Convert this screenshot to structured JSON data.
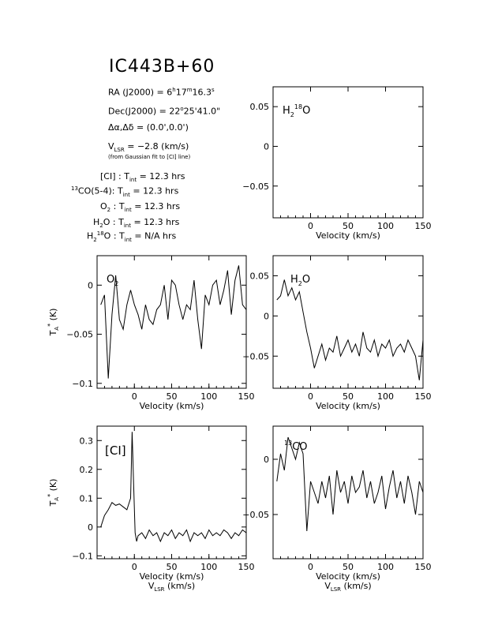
{
  "title": "IC443B+60",
  "info": {
    "ra_label": "RA (J2000) =",
    "ra_h": "6",
    "ra_m": "17",
    "ra_s": "16.3",
    "dec_label": "Dec(J2000) =",
    "dec_d": "22",
    "dec_min": "25'41.0\"",
    "offset_label": "Δα,Δδ =",
    "offset_value": "(0.0',0.0')",
    "vlsr_value": "= −2.8 (km/s)",
    "vlsr_note": "(from Gaussian fit to [CI] line)",
    "tint": [
      {
        "species": "[CI]",
        "value": "= 12.3 hrs"
      },
      {
        "species": "13CO(5-4)",
        "value": "= 12.3 hrs"
      },
      {
        "species": "O2",
        "value": "= 12.3 hrs"
      },
      {
        "species": "H2O",
        "value": "= 12.3 hrs"
      },
      {
        "species": "H2 18O",
        "value": "= N/A hrs"
      }
    ]
  },
  "chart_data": [
    {
      "id": "h218o",
      "type": "line",
      "label": "H2 18O",
      "xlabel": "Velocity (km/s)",
      "ylabel": "",
      "xlim": [
        -50,
        150
      ],
      "ylim": [
        -0.09,
        0.075
      ],
      "xticks": [
        0,
        50,
        100,
        150
      ],
      "yticks": [
        0.05,
        0,
        -0.05
      ],
      "ytick_labels": [
        "0.05",
        "0",
        "−0.05"
      ],
      "x": [],
      "y": []
    },
    {
      "id": "o2",
      "type": "line",
      "label": "O2",
      "xlabel": "Velocity (km/s)",
      "ylabel": "TA* (K)",
      "xlim": [
        -50,
        150
      ],
      "ylim": [
        -0.105,
        0.03
      ],
      "xticks": [
        0,
        50,
        100,
        150
      ],
      "yticks": [
        0,
        -0.05,
        -0.1
      ],
      "ytick_labels": [
        "0",
        "−0.05",
        "−0.1"
      ],
      "x": [
        -45,
        -40,
        -35,
        -30,
        -25,
        -20,
        -15,
        -10,
        -5,
        0,
        5,
        10,
        15,
        20,
        25,
        30,
        35,
        40,
        45,
        50,
        55,
        60,
        65,
        70,
        75,
        80,
        85,
        90,
        95,
        100,
        105,
        110,
        115,
        120,
        125,
        130,
        135,
        140,
        145,
        150
      ],
      "y": [
        -0.02,
        -0.01,
        -0.095,
        -0.03,
        0.01,
        -0.035,
        -0.045,
        -0.02,
        -0.005,
        -0.02,
        -0.03,
        -0.045,
        -0.02,
        -0.035,
        -0.04,
        -0.025,
        -0.02,
        0.0,
        -0.035,
        0.005,
        0.0,
        -0.02,
        -0.035,
        -0.02,
        -0.025,
        0.005,
        -0.035,
        -0.065,
        -0.01,
        -0.02,
        0.0,
        0.005,
        -0.02,
        -0.005,
        0.015,
        -0.03,
        0.005,
        0.02,
        -0.02,
        -0.025
      ]
    },
    {
      "id": "h2o",
      "type": "line",
      "label": "H2O",
      "xlabel": "Velocity (km/s)",
      "ylabel": "",
      "xlim": [
        -50,
        150
      ],
      "ylim": [
        -0.09,
        0.075
      ],
      "xticks": [
        0,
        50,
        100,
        150
      ],
      "yticks": [
        0.05,
        0,
        -0.05
      ],
      "ytick_labels": [
        "0.05",
        "0",
        "−0.05"
      ],
      "x": [
        -45,
        -40,
        -35,
        -30,
        -25,
        -20,
        -15,
        -10,
        -5,
        0,
        5,
        10,
        15,
        20,
        25,
        30,
        35,
        40,
        45,
        50,
        55,
        60,
        65,
        70,
        75,
        80,
        85,
        90,
        95,
        100,
        105,
        110,
        115,
        120,
        125,
        130,
        135,
        140,
        145,
        150
      ],
      "y": [
        0.02,
        0.025,
        0.045,
        0.025,
        0.035,
        0.02,
        0.03,
        0.005,
        -0.02,
        -0.04,
        -0.065,
        -0.05,
        -0.035,
        -0.055,
        -0.04,
        -0.045,
        -0.025,
        -0.05,
        -0.04,
        -0.03,
        -0.045,
        -0.035,
        -0.05,
        -0.02,
        -0.04,
        -0.045,
        -0.03,
        -0.05,
        -0.035,
        -0.04,
        -0.03,
        -0.05,
        -0.04,
        -0.035,
        -0.045,
        -0.03,
        -0.04,
        -0.05,
        -0.08,
        -0.03
      ]
    },
    {
      "id": "ci",
      "type": "line",
      "label": "[CI]",
      "xlabel": "Velocity (km/s)",
      "ylabel": "TA* (K)",
      "xlim": [
        -50,
        150
      ],
      "ylim": [
        -0.11,
        0.35
      ],
      "xticks": [
        0,
        50,
        100,
        150
      ],
      "yticks": [
        0.3,
        0.2,
        0.1,
        0,
        -0.1
      ],
      "ytick_labels": [
        "0.3",
        "0.2",
        "0.1",
        "0",
        "−0.1"
      ],
      "x": [
        -45,
        -40,
        -35,
        -30,
        -25,
        -20,
        -15,
        -10,
        -5,
        -3,
        -1,
        1,
        3,
        5,
        10,
        15,
        20,
        25,
        30,
        35,
        40,
        45,
        50,
        55,
        60,
        65,
        70,
        75,
        80,
        85,
        90,
        95,
        100,
        105,
        110,
        115,
        120,
        125,
        130,
        135,
        140,
        145,
        150
      ],
      "y": [
        0.0,
        0.04,
        0.06,
        0.085,
        0.075,
        0.08,
        0.07,
        0.06,
        0.1,
        0.33,
        0.15,
        -0.02,
        -0.05,
        -0.03,
        -0.02,
        -0.04,
        -0.01,
        -0.03,
        -0.02,
        -0.05,
        -0.02,
        -0.03,
        -0.01,
        -0.04,
        -0.02,
        -0.03,
        -0.01,
        -0.05,
        -0.02,
        -0.03,
        -0.02,
        -0.04,
        -0.01,
        -0.03,
        -0.02,
        -0.03,
        -0.01,
        -0.02,
        -0.04,
        -0.02,
        -0.03,
        -0.01,
        -0.02
      ]
    },
    {
      "id": "13co",
      "type": "line",
      "label": "13CO",
      "xlabel": "Velocity (km/s)",
      "ylabel": "",
      "xlim": [
        -50,
        150
      ],
      "ylim": [
        -0.09,
        0.03
      ],
      "xticks": [
        0,
        50,
        100,
        150
      ],
      "yticks": [
        0,
        -0.05
      ],
      "ytick_labels": [
        "0",
        "−0.05"
      ],
      "x": [
        -45,
        -40,
        -35,
        -30,
        -25,
        -20,
        -15,
        -10,
        -5,
        0,
        5,
        10,
        15,
        20,
        25,
        30,
        35,
        40,
        45,
        50,
        55,
        60,
        65,
        70,
        75,
        80,
        85,
        90,
        95,
        100,
        105,
        110,
        115,
        120,
        125,
        130,
        135,
        140,
        145,
        150
      ],
      "y": [
        -0.02,
        0.005,
        -0.01,
        0.02,
        0.01,
        0.0,
        0.015,
        0.005,
        -0.065,
        -0.02,
        -0.03,
        -0.04,
        -0.02,
        -0.035,
        -0.015,
        -0.05,
        -0.01,
        -0.03,
        -0.02,
        -0.04,
        -0.015,
        -0.03,
        -0.025,
        -0.01,
        -0.035,
        -0.02,
        -0.04,
        -0.03,
        -0.015,
        -0.045,
        -0.025,
        -0.01,
        -0.035,
        -0.02,
        -0.04,
        -0.015,
        -0.03,
        -0.05,
        -0.02,
        -0.03
      ]
    }
  ],
  "bottom_label": "VLSR (km/s)"
}
